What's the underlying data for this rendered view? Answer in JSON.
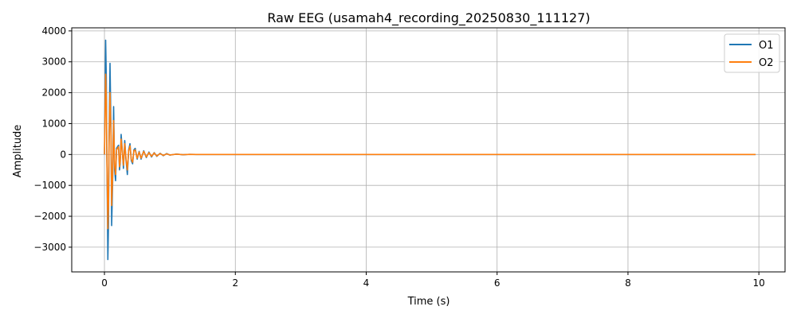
{
  "chart_data": {
    "type": "line",
    "title": "Raw EEG (usamah4_recording_20250830_111127)",
    "xlabel": "Time (s)",
    "ylabel": "Amplitude",
    "xlim": [
      -0.5,
      10.4
    ],
    "ylim": [
      -3800,
      4100
    ],
    "xticks": [
      0,
      2,
      4,
      6,
      8,
      10
    ],
    "xtick_labels": [
      "0",
      "2",
      "4",
      "6",
      "8",
      "10"
    ],
    "yticks": [
      -3000,
      -2000,
      -1000,
      0,
      1000,
      2000,
      3000,
      4000
    ],
    "ytick_labels": [
      "−3000",
      "−2000",
      "−1000",
      "0",
      "1000",
      "2000",
      "3000",
      "4000"
    ],
    "grid": true,
    "legend_position": "top-right",
    "series": [
      {
        "name": "O1",
        "color": "#1f77b4",
        "x": [
          0.0,
          0.018,
          0.028,
          0.036,
          0.052,
          0.062,
          0.07,
          0.085,
          0.1,
          0.11,
          0.125,
          0.14,
          0.155,
          0.17,
          0.185,
          0.2,
          0.215,
          0.23,
          0.24,
          0.255,
          0.27,
          0.29,
          0.31,
          0.33,
          0.35,
          0.37,
          0.39,
          0.41,
          0.43,
          0.45,
          0.47,
          0.5,
          0.53,
          0.56,
          0.6,
          0.64,
          0.68,
          0.72,
          0.76,
          0.8,
          0.85,
          0.9,
          0.95,
          1.0,
          1.1,
          1.2,
          1.3,
          1.4,
          1.5,
          2.0,
          3.0,
          4.0,
          5.0,
          6.0,
          7.0,
          8.0,
          9.0,
          9.95
        ],
        "values": [
          0,
          3700,
          2500,
          200,
          -3400,
          -2200,
          400,
          2950,
          800,
          -2300,
          -900,
          1550,
          -500,
          -850,
          200,
          250,
          300,
          -500,
          -300,
          650,
          200,
          -450,
          450,
          -200,
          -650,
          150,
          350,
          -200,
          -300,
          150,
          200,
          -150,
          100,
          -150,
          120,
          -100,
          80,
          -80,
          60,
          -60,
          40,
          -40,
          30,
          -20,
          15,
          -10,
          5,
          0,
          0,
          0,
          0,
          0,
          0,
          0,
          0,
          0,
          0,
          0
        ]
      },
      {
        "name": "O2",
        "color": "#ff7f0e",
        "x": [
          0.0,
          0.018,
          0.028,
          0.036,
          0.052,
          0.062,
          0.07,
          0.085,
          0.1,
          0.11,
          0.125,
          0.14,
          0.155,
          0.17,
          0.185,
          0.2,
          0.215,
          0.23,
          0.24,
          0.255,
          0.27,
          0.29,
          0.31,
          0.33,
          0.35,
          0.37,
          0.39,
          0.41,
          0.43,
          0.45,
          0.47,
          0.5,
          0.53,
          0.56,
          0.6,
          0.64,
          0.68,
          0.72,
          0.76,
          0.8,
          0.85,
          0.9,
          0.95,
          1.0,
          1.1,
          1.2,
          1.3,
          1.4,
          1.5,
          2.0,
          3.0,
          4.0,
          5.0,
          6.0,
          7.0,
          8.0,
          9.0,
          9.95
        ],
        "values": [
          0,
          2600,
          1800,
          100,
          -2400,
          -1600,
          300,
          2000,
          600,
          -1650,
          -700,
          1100,
          -350,
          -650,
          150,
          200,
          250,
          -400,
          -250,
          500,
          150,
          -350,
          350,
          -150,
          -500,
          120,
          280,
          -150,
          -250,
          120,
          150,
          -120,
          80,
          -120,
          100,
          -80,
          60,
          -60,
          50,
          -50,
          30,
          -30,
          20,
          -15,
          10,
          -5,
          3,
          0,
          0,
          0,
          0,
          0,
          0,
          0,
          0,
          0,
          0,
          0
        ]
      }
    ]
  }
}
